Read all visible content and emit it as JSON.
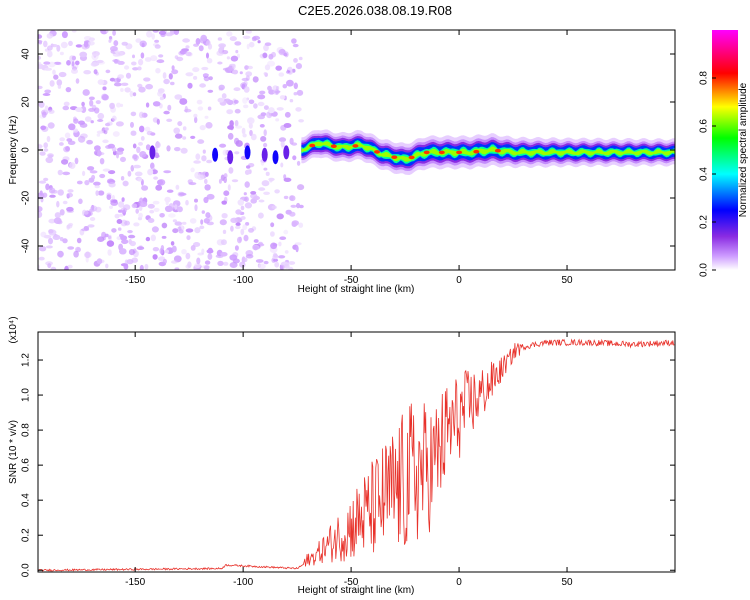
{
  "figure": {
    "title": "C2E5.2026.038.08.19.R08"
  },
  "chart_data": [
    {
      "type": "heatmap",
      "xlabel": "Height of straight line (km)",
      "ylabel": "Frequency (Hz)",
      "xlim": [
        -195,
        100
      ],
      "ylim": [
        -50,
        50
      ],
      "xticks": [
        -150,
        -100,
        -50,
        0,
        50
      ],
      "yticks": [
        -40,
        -20,
        0,
        20,
        40
      ],
      "colormap": [
        "#ffffff",
        "#cc99ff",
        "#8a2be2",
        "#0000ff",
        "#00ffff",
        "#00ff00",
        "#ffff00",
        "#ff0000",
        "#ff00ff"
      ],
      "noise_region_x": [
        -195,
        -73
      ],
      "blank_band_x": [
        -115,
        -111
      ],
      "signal_ridge": {
        "x": [
          -73,
          -65,
          -55,
          -45,
          -35,
          -25,
          -15,
          -5,
          5,
          15,
          25,
          50,
          75,
          100
        ],
        "freq": [
          0,
          3,
          1,
          2,
          -2,
          -4,
          -1,
          -1,
          -1,
          0,
          -1,
          -1,
          -1,
          -1
        ],
        "normalized_amplitude": [
          0.5,
          0.6,
          0.65,
          0.7,
          0.75,
          0.8,
          0.85,
          0.85,
          0.85,
          0.85,
          0.7,
          0.6,
          0.55,
          0.5
        ]
      },
      "colorbar": {
        "label": "Normalized spectral amplitude",
        "range": [
          0,
          1
        ],
        "ticks": [
          0.0,
          0.2,
          0.4,
          0.6,
          0.8
        ]
      }
    },
    {
      "type": "line",
      "xlabel": "Height of straight line (km)",
      "ylabel": "SNR (10 * v/v)",
      "scale_label": "(x10⁴)",
      "xlim": [
        -195,
        100
      ],
      "ylim": [
        -0.01,
        1.36
      ],
      "xticks": [
        -150,
        -100,
        -50,
        0,
        50
      ],
      "yticks": [
        0.0,
        0.2,
        0.4,
        0.6,
        0.8,
        1.0,
        1.2
      ],
      "color": "#e8322b",
      "series": [
        {
          "x": [
            -195,
            -110,
            -108,
            -75,
            -70,
            -60,
            -50,
            -40,
            -30,
            -20,
            -12,
            -5,
            5,
            10,
            20,
            27,
            40,
            60,
            80,
            100
          ],
          "values": [
            0.0,
            0.01,
            0.03,
            0.01,
            0.05,
            0.15,
            0.25,
            0.35,
            0.45,
            0.55,
            0.6,
            0.8,
            0.95,
            1.0,
            1.15,
            1.27,
            1.3,
            1.3,
            1.29,
            1.3
          ]
        }
      ]
    }
  ]
}
